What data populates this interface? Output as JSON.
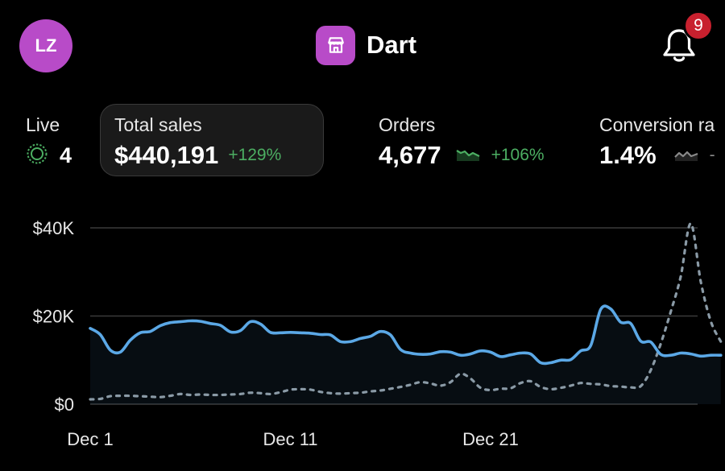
{
  "header": {
    "avatar_initials": "LZ",
    "store_name": "Dart",
    "store_icon": "storefront-icon",
    "notification_icon": "bell-icon",
    "notification_count": "9"
  },
  "metrics": {
    "live": {
      "label": "Live",
      "value": "4",
      "icon": "live-pulse-icon"
    },
    "total_sales": {
      "label": "Total sales",
      "value": "$440,191",
      "change": "+129%"
    },
    "orders": {
      "label": "Orders",
      "value": "4,677",
      "change": "+106%"
    },
    "conversion": {
      "label": "Conversion ra",
      "value": "1.4%",
      "change": "-"
    }
  },
  "colors": {
    "accent": "#b84bc8",
    "badge": "#c8202e",
    "positive": "#4cae62",
    "current_series": "#5ba8e6",
    "comparison_series": "#8a9aa6"
  },
  "chart_data": {
    "type": "line",
    "yticks": [
      {
        "value": 40000,
        "label": "$40K"
      },
      {
        "value": 20000,
        "label": "$20K"
      },
      {
        "value": 0,
        "label": "$0"
      }
    ],
    "ylim": [
      0,
      40000
    ],
    "xticks": [
      {
        "day": 1,
        "label": "Dec 1"
      },
      {
        "day": 11,
        "label": "Dec 11"
      },
      {
        "day": 21,
        "label": "Dec 21"
      }
    ],
    "xlim": [
      1,
      31
    ],
    "series": [
      {
        "style": "solid",
        "points": [
          [
            1,
            17200
          ],
          [
            1.5,
            15800
          ],
          [
            2,
            12300
          ],
          [
            2.5,
            11800
          ],
          [
            3,
            14500
          ],
          [
            3.5,
            16200
          ],
          [
            4,
            16500
          ],
          [
            4.5,
            17800
          ],
          [
            5,
            18500
          ],
          [
            5.5,
            18700
          ],
          [
            6,
            18900
          ],
          [
            6.5,
            18800
          ],
          [
            7,
            18300
          ],
          [
            7.5,
            17900
          ],
          [
            8,
            16400
          ],
          [
            8.5,
            16700
          ],
          [
            9,
            18700
          ],
          [
            9.5,
            18200
          ],
          [
            10,
            16300
          ],
          [
            10.5,
            16200
          ],
          [
            11,
            16300
          ],
          [
            11.5,
            16200
          ],
          [
            12,
            16100
          ],
          [
            12.5,
            15800
          ],
          [
            13,
            15700
          ],
          [
            13.5,
            14200
          ],
          [
            14,
            14200
          ],
          [
            14.5,
            14900
          ],
          [
            15,
            15400
          ],
          [
            15.5,
            16500
          ],
          [
            16,
            15700
          ],
          [
            16.5,
            12400
          ],
          [
            17,
            11600
          ],
          [
            17.5,
            11300
          ],
          [
            18,
            11400
          ],
          [
            18.5,
            11900
          ],
          [
            19,
            11800
          ],
          [
            19.5,
            11100
          ],
          [
            20,
            11400
          ],
          [
            20.5,
            12100
          ],
          [
            21,
            11800
          ],
          [
            21.5,
            10800
          ],
          [
            22,
            11200
          ],
          [
            22.5,
            11600
          ],
          [
            23,
            11400
          ],
          [
            23.5,
            9400
          ],
          [
            24,
            9400
          ],
          [
            24.5,
            10000
          ],
          [
            25,
            10100
          ],
          [
            25.5,
            12100
          ],
          [
            26,
            13300
          ],
          [
            26.5,
            21500
          ],
          [
            27,
            21600
          ],
          [
            27.5,
            18600
          ],
          [
            28,
            18300
          ],
          [
            28.5,
            14300
          ],
          [
            29,
            14100
          ],
          [
            29.5,
            11300
          ],
          [
            30,
            11100
          ],
          [
            30.5,
            11600
          ],
          [
            31,
            11400
          ],
          [
            31.5,
            10900
          ],
          [
            32,
            11100
          ],
          [
            32.5,
            11100
          ]
        ]
      },
      {
        "style": "dashed",
        "points": [
          [
            1,
            1100
          ],
          [
            1.5,
            1200
          ],
          [
            2,
            1800
          ],
          [
            2.5,
            1900
          ],
          [
            3,
            1900
          ],
          [
            3.5,
            1800
          ],
          [
            4,
            1700
          ],
          [
            4.5,
            1600
          ],
          [
            5,
            1900
          ],
          [
            5.5,
            2300
          ],
          [
            6,
            2100
          ],
          [
            6.5,
            2200
          ],
          [
            7,
            2100
          ],
          [
            7.5,
            2100
          ],
          [
            8,
            2200
          ],
          [
            8.5,
            2300
          ],
          [
            9,
            2600
          ],
          [
            9.5,
            2500
          ],
          [
            10,
            2300
          ],
          [
            10.5,
            2700
          ],
          [
            11,
            3300
          ],
          [
            11.5,
            3400
          ],
          [
            12,
            3300
          ],
          [
            12.5,
            2800
          ],
          [
            13,
            2500
          ],
          [
            13.5,
            2400
          ],
          [
            14,
            2500
          ],
          [
            14.5,
            2600
          ],
          [
            15,
            2900
          ],
          [
            15.5,
            3100
          ],
          [
            16,
            3500
          ],
          [
            16.5,
            3900
          ],
          [
            17,
            4400
          ],
          [
            17.5,
            5000
          ],
          [
            18,
            4700
          ],
          [
            18.5,
            4200
          ],
          [
            19,
            5000
          ],
          [
            19.5,
            6900
          ],
          [
            20,
            5800
          ],
          [
            20.5,
            3700
          ],
          [
            21,
            3200
          ],
          [
            21.5,
            3500
          ],
          [
            22,
            3600
          ],
          [
            22.5,
            4800
          ],
          [
            23,
            5200
          ],
          [
            23.5,
            3900
          ],
          [
            24,
            3400
          ],
          [
            24.5,
            3700
          ],
          [
            25,
            4200
          ],
          [
            25.5,
            4800
          ],
          [
            26,
            4600
          ],
          [
            26.5,
            4500
          ],
          [
            27,
            4100
          ],
          [
            27.5,
            4000
          ],
          [
            28,
            3800
          ],
          [
            28.5,
            4100
          ],
          [
            29,
            7700
          ],
          [
            29.5,
            13700
          ],
          [
            30,
            21000
          ],
          [
            30.5,
            29000
          ],
          [
            31,
            41000
          ],
          [
            31.5,
            27800
          ],
          [
            32,
            18800
          ],
          [
            32.5,
            14200
          ]
        ]
      }
    ]
  }
}
